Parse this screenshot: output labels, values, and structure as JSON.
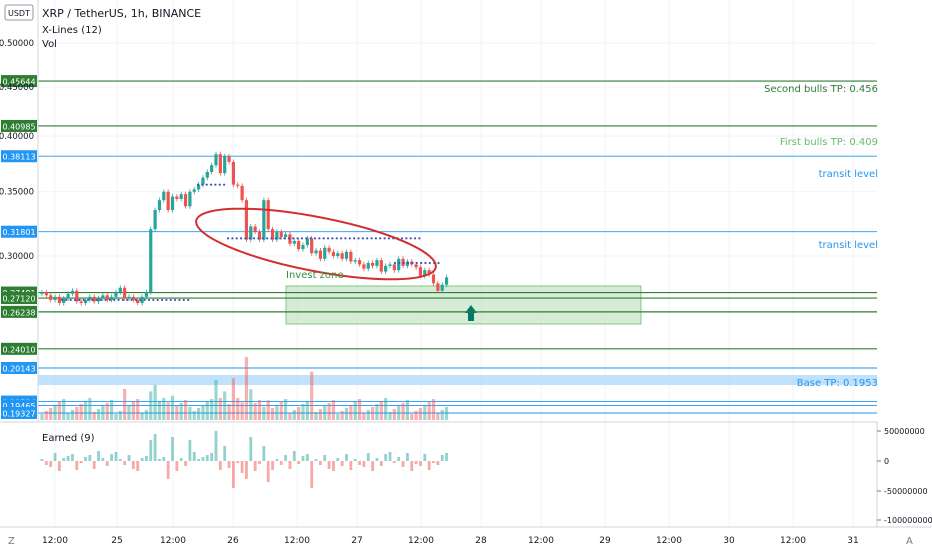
{
  "header": {
    "currency_badge": "USDT",
    "title": "XRP / TetherUS, 1h, BINANCE",
    "indicator1": "X-Lines (12)",
    "indicator2": "Vol"
  },
  "lower_pane": {
    "title": "Earned (9)",
    "axis_labels": [
      "50000000",
      "0",
      "-50000000",
      "-100000000"
    ]
  },
  "bottom_bar": {
    "left_button": "Z",
    "right_button": "A"
  },
  "annotations": {
    "second_tp": "Second bulls TP: 0.456",
    "first_tp": "First bulls TP: 0.409",
    "transit1": "transit level",
    "transit2": "transit level",
    "invest_zone": "Invest zone",
    "base_tp": "Base TP: 0.1953"
  },
  "colors": {
    "up": "#26a69a",
    "down": "#ef5350",
    "level_green": "#2e7d32",
    "level_blue": "#2196f3",
    "zone_fill": "#c8e6c9",
    "ellipse": "#d32f2f",
    "dots": "#3f51b5"
  },
  "chart_data": {
    "type": "candlestick",
    "symbol": "XRP / TetherUS",
    "interval": "1h",
    "exchange": "BINANCE",
    "y_axis_ticks": [
      "0.50000",
      "0.45000",
      "0.40000",
      "0.35000",
      "0.30000"
    ],
    "x_axis_ticks": [
      "12:00",
      "25",
      "12:00",
      "26",
      "12:00",
      "27",
      "12:00",
      "28",
      "12:00",
      "29",
      "12:00",
      "30",
      "12:00",
      "31"
    ],
    "levels": [
      {
        "value": "0.45644",
        "color": "green"
      },
      {
        "value": "0.40985",
        "color": "green"
      },
      {
        "value": "0.38113",
        "color": "blue"
      },
      {
        "value": "0.31801",
        "color": "blue"
      },
      {
        "value": "0.27481",
        "color": "green"
      },
      {
        "value": "0.27120",
        "color": "green"
      },
      {
        "value": "0.26238",
        "color": "green"
      },
      {
        "value": "0.24010",
        "color": "green"
      },
      {
        "value": "0.20143",
        "color": "blue"
      },
      {
        "value": "0.19534",
        "color": "blue"
      },
      {
        "value": "0.19465",
        "color": "blue"
      },
      {
        "value": "0.19327",
        "color": "blue"
      }
    ],
    "candles_close": [
      0.275,
      0.273,
      0.27,
      0.272,
      0.268,
      0.271,
      0.274,
      0.276,
      0.269,
      0.268,
      0.27,
      0.272,
      0.269,
      0.271,
      0.273,
      0.27,
      0.272,
      0.275,
      0.278,
      0.271,
      0.272,
      0.27,
      0.268,
      0.272,
      0.275,
      0.32,
      0.335,
      0.343,
      0.35,
      0.335,
      0.346,
      0.344,
      0.348,
      0.338,
      0.35,
      0.352,
      0.356,
      0.362,
      0.367,
      0.373,
      0.383,
      0.366,
      0.381,
      0.376,
      0.356,
      0.355,
      0.343,
      0.312,
      0.322,
      0.318,
      0.312,
      0.343,
      0.32,
      0.312,
      0.318,
      0.314,
      0.316,
      0.309,
      0.311,
      0.305,
      0.308,
      0.313,
      0.302,
      0.304,
      0.298,
      0.306,
      0.303,
      0.3,
      0.302,
      0.298,
      0.303,
      0.296,
      0.297,
      0.294,
      0.291,
      0.295,
      0.293,
      0.297,
      0.289,
      0.293,
      0.294,
      0.29,
      0.298,
      0.293,
      0.296,
      0.294,
      0.292,
      0.286,
      0.29,
      0.287,
      0.281,
      0.276,
      0.28,
      0.285
    ],
    "invest_zone": [
      0.2401,
      0.2748
    ],
    "base_tp": 0.1953,
    "first_tp": 0.409,
    "second_tp": 0.456
  }
}
